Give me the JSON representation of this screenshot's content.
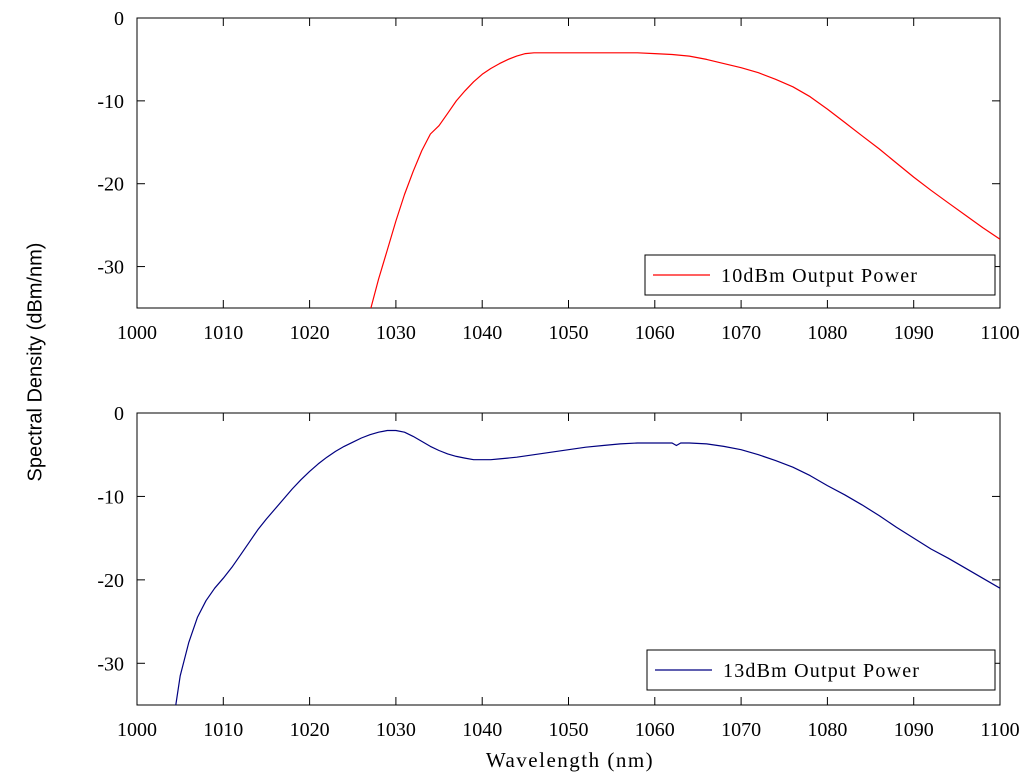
{
  "chart_data": [
    {
      "type": "line",
      "title": "",
      "xlabel": "Wavelength (nm)",
      "ylabel": "Spectral Density (dBm/nm)",
      "xlim": [
        1000,
        1100
      ],
      "ylim": [
        -35,
        0
      ],
      "xticks": [
        1000,
        1010,
        1020,
        1030,
        1040,
        1050,
        1060,
        1070,
        1080,
        1090,
        1100
      ],
      "yticks": [
        0,
        -10,
        -20,
        -30
      ],
      "xtick_labels": [
        "1000",
        "1010",
        "1020",
        "1030",
        "1040",
        "1050",
        "1060",
        "1070",
        "1080",
        "1090",
        "1100"
      ],
      "ytick_labels": [
        "0",
        "-10",
        "-20",
        "-30"
      ],
      "grid": false,
      "legend_position": "bottom-right",
      "series": [
        {
          "name": "10dBm Output Power",
          "color": "#ff0000",
          "x": [
            1027.1,
            1028,
            1029,
            1030,
            1031,
            1032,
            1033,
            1034,
            1035,
            1036,
            1037,
            1038,
            1039,
            1040,
            1041,
            1042,
            1043,
            1044,
            1045,
            1046,
            1048,
            1050,
            1052,
            1055,
            1058,
            1060,
            1062,
            1064,
            1066,
            1068,
            1070,
            1072,
            1074,
            1076,
            1078,
            1080,
            1082,
            1084,
            1086,
            1088,
            1090,
            1092,
            1094,
            1096,
            1098,
            1100
          ],
          "y": [
            -35,
            -31.5,
            -28,
            -24.5,
            -21.3,
            -18.5,
            -16,
            -14,
            -13,
            -11.5,
            -10,
            -8.8,
            -7.7,
            -6.8,
            -6.1,
            -5.5,
            -5,
            -4.6,
            -4.3,
            -4.2,
            -4.2,
            -4.2,
            -4.2,
            -4.2,
            -4.2,
            -4.3,
            -4.4,
            -4.6,
            -5,
            -5.5,
            -6,
            -6.6,
            -7.4,
            -8.3,
            -9.5,
            -11,
            -12.6,
            -14.2,
            -15.8,
            -17.5,
            -19.2,
            -20.8,
            -22.3,
            -23.8,
            -25.3,
            -26.7
          ]
        }
      ]
    },
    {
      "type": "line",
      "title": "",
      "xlabel": "Wavelength (nm)",
      "ylabel": "Spectral Density (dBm/nm)",
      "xlim": [
        1000,
        1100
      ],
      "ylim": [
        -35,
        0
      ],
      "xticks": [
        1000,
        1010,
        1020,
        1030,
        1040,
        1050,
        1060,
        1070,
        1080,
        1090,
        1100
      ],
      "yticks": [
        0,
        -10,
        -20,
        -30
      ],
      "xtick_labels": [
        "1000",
        "1010",
        "1020",
        "1030",
        "1040",
        "1050",
        "1060",
        "1070",
        "1080",
        "1090",
        "1100"
      ],
      "ytick_labels": [
        "0",
        "-10",
        "-20",
        "-30"
      ],
      "grid": false,
      "legend_position": "bottom-right",
      "series": [
        {
          "name": "13dBm Output Power",
          "color": "#000080",
          "x": [
            1004.5,
            1005,
            1005.5,
            1006,
            1007,
            1008,
            1009,
            1010,
            1011,
            1012,
            1013,
            1014,
            1015,
            1016,
            1017,
            1018,
            1019,
            1020,
            1021,
            1022,
            1023,
            1024,
            1025,
            1026,
            1027,
            1028,
            1029,
            1030,
            1031,
            1032,
            1033,
            1034,
            1035,
            1036,
            1037,
            1038,
            1039,
            1040,
            1041,
            1042,
            1044,
            1046,
            1048,
            1050,
            1052,
            1054,
            1056,
            1058,
            1060,
            1062,
            1062.5,
            1063,
            1064,
            1066,
            1068,
            1070,
            1072,
            1074,
            1076,
            1078,
            1080,
            1082,
            1084,
            1086,
            1088,
            1090,
            1092,
            1094,
            1096,
            1098,
            1100
          ],
          "y": [
            -35,
            -31.5,
            -29.5,
            -27.5,
            -24.5,
            -22.5,
            -21,
            -19.8,
            -18.5,
            -17,
            -15.5,
            -14,
            -12.7,
            -11.5,
            -10.3,
            -9.1,
            -8,
            -7,
            -6.1,
            -5.3,
            -4.6,
            -4,
            -3.5,
            -3,
            -2.6,
            -2.3,
            -2.1,
            -2.1,
            -2.3,
            -2.8,
            -3.4,
            -4,
            -4.5,
            -4.9,
            -5.2,
            -5.4,
            -5.6,
            -5.6,
            -5.6,
            -5.5,
            -5.3,
            -5,
            -4.7,
            -4.4,
            -4.1,
            -3.9,
            -3.7,
            -3.6,
            -3.6,
            -3.6,
            -3.9,
            -3.6,
            -3.6,
            -3.7,
            -4,
            -4.4,
            -5,
            -5.7,
            -6.5,
            -7.5,
            -8.7,
            -9.8,
            -11,
            -12.3,
            -13.7,
            -15,
            -16.3,
            -17.4,
            -18.6,
            -19.8,
            -21
          ]
        }
      ]
    }
  ]
}
